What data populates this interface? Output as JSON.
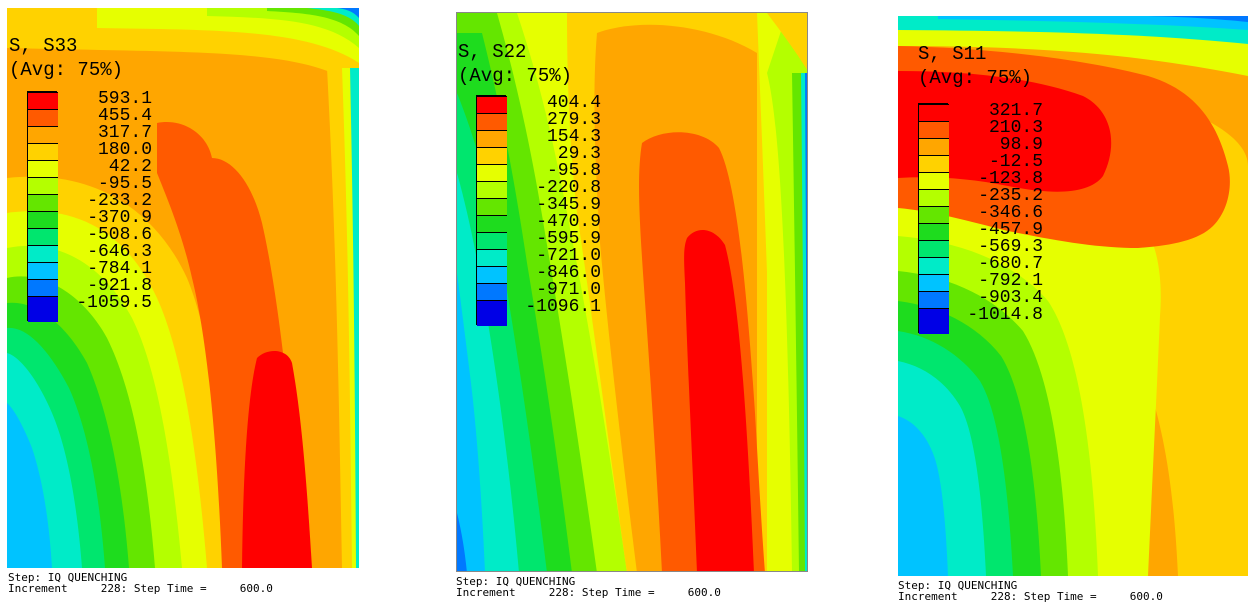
{
  "panels": [
    {
      "title_line1": "S, S33",
      "title_line2": "(Avg: 75%)",
      "legend_values": [
        "593.1",
        "455.4",
        "317.7",
        "180.0",
        "42.2",
        "-95.5",
        "-233.2",
        "-370.9",
        "-508.6",
        "-646.3",
        "-784.1",
        "-921.8",
        "-1059.5"
      ],
      "footer_step": "Step: IQ QUENCHING",
      "footer_increment": "Increment     228: Step Time =     600.0"
    },
    {
      "title_line1": "S, S22",
      "title_line2": "(Avg: 75%)",
      "legend_values": [
        "404.4",
        "279.3",
        "154.3",
        "29.3",
        "-95.8",
        "-220.8",
        "-345.9",
        "-470.9",
        "-595.9",
        "-721.0",
        "-846.0",
        "-971.0",
        "-1096.1"
      ],
      "footer_step": "Step: IQ QUENCHING",
      "footer_increment": "Increment     228: Step Time =     600.0"
    },
    {
      "title_line1": "S, S11",
      "title_line2": "(Avg: 75%)",
      "legend_values": [
        "321.7",
        "210.3",
        "98.9",
        "-12.5",
        "-123.8",
        "-235.2",
        "-346.6",
        "-457.9",
        "-569.3",
        "-680.7",
        "-792.1",
        "-903.4",
        "-1014.8"
      ],
      "footer_step": "Step: IQ QUENCHING",
      "footer_increment": "Increment     228: Step Time =     600.0"
    }
  ],
  "colors": {
    "c12": "#ff0000",
    "c11": "#ff5a00",
    "c10": "#ffa600",
    "c9": "#ffd200",
    "c8": "#e6ff00",
    "c7": "#b4ff00",
    "c6": "#64e600",
    "c5": "#1edc1e",
    "c4": "#00e66e",
    "c3": "#00ebc8",
    "c2": "#00c3ff",
    "c1": "#0078ff",
    "c0": "#0000e6"
  }
}
